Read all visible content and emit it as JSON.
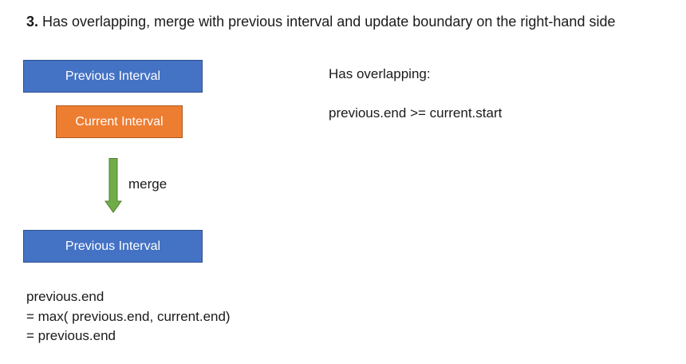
{
  "heading": {
    "step": "3.",
    "text": "Has overlapping, merge with previous interval and update boundary on the right-hand side"
  },
  "boxes": {
    "previous_top": "Previous Interval",
    "current": "Current Interval",
    "previous_bottom": "Previous Interval"
  },
  "arrow": {
    "label": "merge",
    "color": "#70ad47"
  },
  "condition": {
    "title": "Has overlapping:",
    "expression": "previous.end >= current.start"
  },
  "formula": {
    "line1": "previous.end",
    "line2": "= max( previous.end, current.end)",
    "line3": "= previous.end"
  },
  "colors": {
    "blue": "#4472c4",
    "orange": "#ed7d31",
    "green": "#70ad47"
  }
}
